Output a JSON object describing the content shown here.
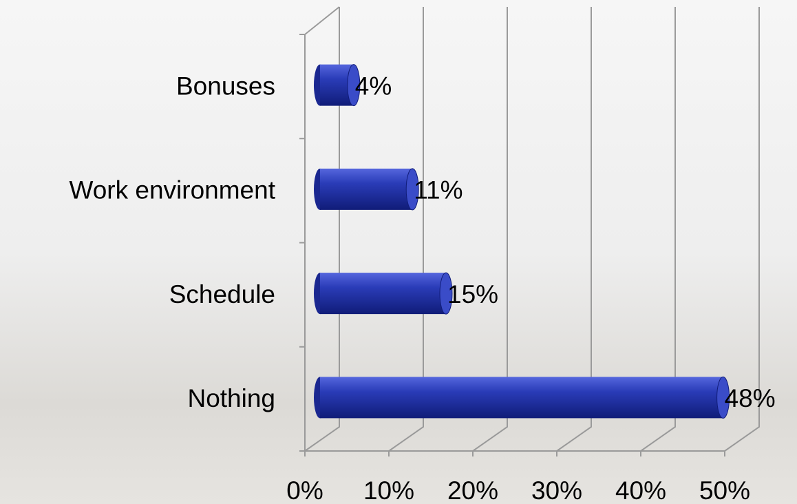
{
  "chart_data": {
    "type": "bar",
    "orientation": "horizontal",
    "categories": [
      "Bonuses",
      "Work environment",
      "Schedule",
      "Nothing"
    ],
    "values": [
      4,
      11,
      15,
      48
    ],
    "value_labels": [
      "4%",
      "11%",
      "15%",
      "48%"
    ],
    "color": "#2a3cb8",
    "xlim": [
      0,
      50
    ],
    "xticks": [
      {
        "value": 0,
        "label": "0%"
      },
      {
        "value": 10,
        "label": "10%"
      },
      {
        "value": 20,
        "label": "20%"
      },
      {
        "value": 30,
        "label": "30%"
      },
      {
        "value": 40,
        "label": "40%"
      },
      {
        "value": 50,
        "label": "50%"
      }
    ],
    "grid": true
  }
}
